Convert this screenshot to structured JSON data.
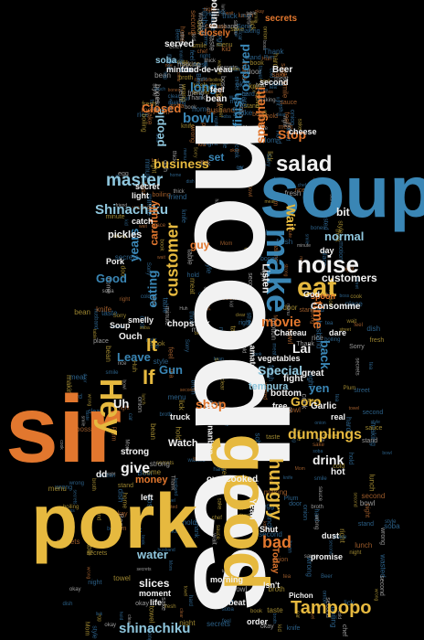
{
  "palette": {
    "white": "#f2f2f2",
    "blue": "#3a86b5",
    "lightblue": "#8fc6dd",
    "orange": "#e2772e",
    "yellow": "#e6b93f",
    "dim_blue": "#2b5f86",
    "dim_orange": "#9a5a2a",
    "dim_yellow": "#9c8530",
    "dim_white": "#9a9a9a"
  },
  "words": [
    {
      "id": "noodles",
      "text": "noodles",
      "color": "white"
    },
    {
      "id": "soup",
      "text": "soup",
      "color": "blue"
    },
    {
      "id": "sir",
      "text": "sir",
      "color": "orange"
    },
    {
      "id": "pork",
      "text": "pork",
      "color": "yellow"
    },
    {
      "id": "good",
      "text": "good",
      "color": "yellow"
    },
    {
      "id": "hey",
      "text": "Hey",
      "color": "yellow"
    },
    {
      "id": "eat",
      "text": "eat",
      "color": "yellow"
    },
    {
      "id": "make",
      "text": "make",
      "color": "blue"
    },
    {
      "id": "noise",
      "text": "noise",
      "color": "white"
    },
    {
      "id": "salad",
      "text": "salad",
      "color": "white"
    },
    {
      "id": "tampopo",
      "text": "Tampopo",
      "color": "yellow"
    },
    {
      "id": "shinachiku",
      "text": "shinachiku",
      "color": "lightblue"
    },
    {
      "id": "shinachiku2",
      "text": "Shinachiku",
      "color": "lightblue"
    },
    {
      "id": "master",
      "text": "master",
      "color": "lightblue"
    },
    {
      "id": "business",
      "text": "business",
      "color": "yellow"
    },
    {
      "id": "customer",
      "text": "customer",
      "color": "yellow"
    },
    {
      "id": "customers",
      "text": "customers",
      "color": "white"
    },
    {
      "id": "movie",
      "text": "movie",
      "color": "orange"
    },
    {
      "id": "hungry",
      "text": "hungry",
      "color": "yellow"
    },
    {
      "id": "dumplings",
      "text": "dumplings",
      "color": "yellow"
    },
    {
      "id": "drink",
      "text": "drink",
      "color": "white"
    },
    {
      "id": "bad",
      "text": "bad",
      "color": "orange"
    },
    {
      "id": "give",
      "text": "give",
      "color": "white"
    },
    {
      "id": "shop",
      "text": "shop",
      "color": "orange"
    },
    {
      "id": "water",
      "text": "water",
      "color": "lightblue"
    },
    {
      "id": "slices",
      "text": "slices",
      "color": "white"
    },
    {
      "id": "normal",
      "text": "normal",
      "color": "lightblue"
    },
    {
      "id": "bowl",
      "text": "bowl",
      "color": "blue"
    },
    {
      "id": "spaghetti",
      "text": "spaghetti",
      "color": "orange"
    },
    {
      "id": "finish",
      "text": "finish",
      "color": "blue"
    },
    {
      "id": "ordered",
      "text": "ordered",
      "color": "blue"
    },
    {
      "id": "long",
      "text": "long",
      "color": "blue"
    },
    {
      "id": "time",
      "text": "time",
      "color": "orange"
    },
    {
      "id": "back",
      "text": "back",
      "color": "blue"
    },
    {
      "id": "wait",
      "text": "Wait",
      "color": "yellow"
    },
    {
      "id": "goro",
      "text": "Goro",
      "color": "yellow"
    },
    {
      "id": "years",
      "text": "years",
      "color": "blue"
    },
    {
      "id": "eating",
      "text": "eating",
      "color": "blue"
    },
    {
      "id": "good2",
      "text": "Good",
      "color": "blue"
    },
    {
      "id": "carefully",
      "text": "carefully",
      "color": "orange"
    },
    {
      "id": "leave",
      "text": "Leave",
      "color": "blue"
    },
    {
      "id": "gun",
      "text": "Gun",
      "color": "blue"
    },
    {
      "id": "special",
      "text": "Special",
      "color": "lightblue"
    },
    {
      "id": "lai",
      "text": "Lai",
      "color": "white"
    },
    {
      "id": "yen",
      "text": "yen",
      "color": "blue"
    },
    {
      "id": "stop",
      "text": "Stop",
      "color": "orange"
    },
    {
      "id": "money",
      "text": "money",
      "color": "orange"
    },
    {
      "id": "people",
      "text": "people",
      "color": "lightblue"
    },
    {
      "id": "closed",
      "text": "Closed",
      "color": "orange"
    },
    {
      "id": "watch",
      "text": "Watch",
      "color": "white"
    },
    {
      "id": "uh",
      "text": "Uh",
      "color": "white"
    },
    {
      "id": "chopstick",
      "text": "chopstick",
      "color": "white"
    },
    {
      "id": "listen",
      "text": "Listen",
      "color": "white"
    },
    {
      "id": "boiling",
      "text": "boiling",
      "color": "white"
    },
    {
      "id": "beer",
      "text": "Beer",
      "color": "white"
    },
    {
      "id": "served",
      "text": "served",
      "color": "white"
    },
    {
      "id": "soba",
      "text": "soba",
      "color": "lightblue"
    },
    {
      "id": "minute",
      "text": "minute",
      "color": "white"
    },
    {
      "id": "fond",
      "text": "fond-de-veau",
      "color": "white"
    },
    {
      "id": "secrets",
      "text": "secrets",
      "color": "orange"
    },
    {
      "id": "closely",
      "text": "closely",
      "color": "orange"
    },
    {
      "id": "set",
      "text": "set",
      "color": "blue"
    },
    {
      "id": "pickles",
      "text": "pickles",
      "color": "white"
    },
    {
      "id": "catch",
      "text": "catch",
      "color": "white"
    },
    {
      "id": "light",
      "text": "light",
      "color": "white"
    },
    {
      "id": "secret",
      "text": "secret",
      "color": "white"
    },
    {
      "id": "pork2",
      "text": "Pork",
      "color": "white"
    },
    {
      "id": "spoon",
      "text": "spoon",
      "color": "orange"
    },
    {
      "id": "consomme",
      "text": "Consomme",
      "color": "white"
    },
    {
      "id": "tempura",
      "text": "tempura",
      "color": "lightblue"
    },
    {
      "id": "great",
      "text": "great",
      "color": "white"
    },
    {
      "id": "fight",
      "text": "fight",
      "color": "white"
    },
    {
      "id": "bottom",
      "text": "bottom",
      "color": "white"
    },
    {
      "id": "real",
      "text": "real",
      "color": "white"
    },
    {
      "id": "garlic",
      "text": "Garlic",
      "color": "white"
    },
    {
      "id": "hot",
      "text": "hot",
      "color": "white"
    },
    {
      "id": "strong",
      "text": "strong",
      "color": "white"
    },
    {
      "id": "dd",
      "text": "dd",
      "color": "white"
    },
    {
      "id": "overcooked",
      "text": "overcooked",
      "color": "white"
    },
    {
      "id": "yeah",
      "text": "Yeah",
      "color": "white"
    },
    {
      "id": "shut",
      "text": "Shut",
      "color": "white"
    },
    {
      "id": "promise",
      "text": "promise",
      "color": "white"
    },
    {
      "id": "today",
      "text": "Today",
      "color": "orange"
    },
    {
      "id": "isnt",
      "text": "Isn't",
      "color": "white"
    },
    {
      "id": "order",
      "text": "order",
      "color": "white"
    },
    {
      "id": "moment",
      "text": "moment",
      "color": "white"
    },
    {
      "id": "life",
      "text": "life",
      "color": "white"
    },
    {
      "id": "beat",
      "text": "beat",
      "color": "white"
    },
    {
      "id": "morning",
      "text": "morning",
      "color": "white"
    },
    {
      "id": "ryota",
      "text": "Ryota",
      "color": "white"
    },
    {
      "id": "guy",
      "text": "guy",
      "color": "orange"
    },
    {
      "id": "day",
      "text": "day",
      "color": "white"
    },
    {
      "id": "bit",
      "text": "bit",
      "color": "white"
    },
    {
      "id": "ouch",
      "text": "Ouch",
      "color": "white"
    },
    {
      "id": "cheese",
      "text": "cheese",
      "color": "white"
    },
    {
      "id": "bean",
      "text": "bean",
      "color": "white"
    },
    {
      "id": "feel",
      "text": "feel",
      "color": "white"
    },
    {
      "id": "truck",
      "text": "truck",
      "color": "white"
    },
    {
      "id": "kamo",
      "text": "kamonanban",
      "color": "white"
    },
    {
      "id": "smelly",
      "text": "smelly",
      "color": "white"
    },
    {
      "id": "soup2",
      "text": "Soup",
      "color": "white"
    },
    {
      "id": "dare",
      "text": "dare",
      "color": "white"
    },
    {
      "id": "chateau",
      "text": "Chateau",
      "color": "white"
    },
    {
      "id": "vegetables",
      "text": "vegetables",
      "color": "white"
    },
    {
      "id": "amateurs",
      "text": "amateurs",
      "color": "white"
    },
    {
      "id": "free",
      "text": "free",
      "color": "white"
    },
    {
      "id": "left",
      "text": "left",
      "color": "white"
    },
    {
      "id": "pichon",
      "text": "Pichon",
      "color": "white"
    },
    {
      "id": "dust",
      "text": "dust",
      "color": "white"
    },
    {
      "id": "god",
      "text": "God",
      "color": "white"
    },
    {
      "id": "second",
      "text": "second",
      "color": "white"
    },
    {
      "id": "if",
      "text": "If",
      "color": "yellow"
    },
    {
      "id": "it",
      "text": "It",
      "color": "yellow"
    }
  ],
  "filler": [
    "boiling",
    "secrets",
    "soba",
    "minute",
    "Beer",
    "second",
    "motion",
    "clear",
    "sauce",
    "feel",
    "bean",
    "making",
    "Plum",
    "cold",
    "hard",
    "Mom",
    "door",
    "husband",
    "lick",
    "dish",
    "book",
    "stand",
    "thick",
    "wasted",
    "wrong",
    "strong",
    "fresh",
    "lunch",
    "taste",
    "right",
    "smile",
    "chef",
    "meat",
    "bowl",
    "hold",
    "Huh",
    "wait",
    "okay",
    "Sorry",
    "Thank",
    "boss",
    "kid",
    "friend",
    "night",
    "place",
    "bones",
    "broth",
    "onion",
    "menu",
    "style",
    "egg",
    "rice",
    "tea",
    "sake",
    "cook",
    "knife",
    "towel",
    "table",
    "street",
    "home",
    "car"
  ]
}
